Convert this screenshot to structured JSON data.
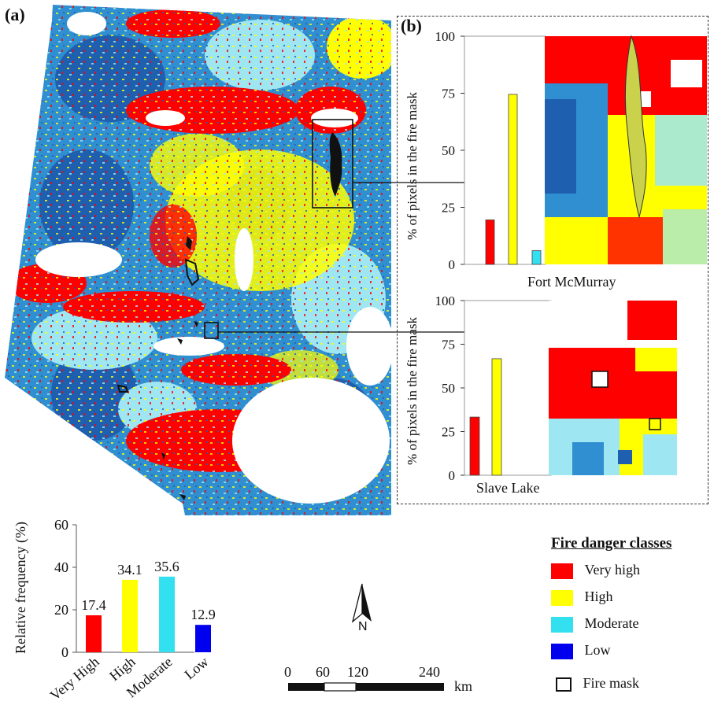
{
  "panel_a_label": "(a)",
  "panel_b_label": "(b)",
  "colors": {
    "very_high": "#ff0000",
    "high": "#ffff00",
    "moderate": "#33e0f0",
    "low": "#1f5fb0",
    "map_blue": "#2f8fd0",
    "map_lightblue": "#9ee6f2"
  },
  "inset_fort": {
    "title": "Fort McMurray",
    "ylabel": "% of pixels in the fire mask",
    "yticks": [
      "0",
      "25",
      "50",
      "75",
      "100"
    ]
  },
  "inset_slave": {
    "title": "Slave Lake",
    "ylabel": "% of pixels in the fire mask",
    "yticks": [
      "0",
      "25",
      "50",
      "75",
      "100"
    ]
  },
  "freq_chart": {
    "ylabel": "Relative frequency (%)",
    "yticks": [
      "0",
      "20",
      "40",
      "60"
    ],
    "categories": [
      "Very High",
      "High",
      "Moderate",
      "Low"
    ],
    "value_labels": [
      "17.4",
      "34.1",
      "35.6",
      "12.9"
    ]
  },
  "chart_data": [
    {
      "type": "bar",
      "title": "Fort McMurray",
      "ylabel": "% of pixels in the fire mask",
      "ylim": [
        0,
        100
      ],
      "categories": [
        "Very high",
        "High",
        "Moderate",
        "Low"
      ],
      "values": [
        19.5,
        74.5,
        6,
        0
      ]
    },
    {
      "type": "bar",
      "title": "Slave Lake",
      "ylabel": "% of pixels in the fire mask",
      "ylim": [
        0,
        100
      ],
      "categories": [
        "Very high",
        "High",
        "Moderate",
        "Low"
      ],
      "values": [
        33.3,
        66.7,
        0,
        0
      ]
    },
    {
      "type": "bar",
      "ylabel": "Relative frequency (%)",
      "ylim": [
        0,
        60
      ],
      "categories": [
        "Very High",
        "High",
        "Moderate",
        "Low"
      ],
      "values": [
        17.4,
        34.1,
        35.6,
        12.9
      ]
    }
  ],
  "legend": {
    "title": "Fire danger classes",
    "items": [
      {
        "label": "Very high",
        "color": "#ff0000"
      },
      {
        "label": "High",
        "color": "#ffff00"
      },
      {
        "label": "Moderate",
        "color": "#33e0f0"
      },
      {
        "label": "Low",
        "color": "#1f5fb0"
      },
      {
        "label": "Fire mask",
        "color": "#ffffff"
      }
    ]
  },
  "north_arrow": {
    "label": "N"
  },
  "scale_bar": {
    "ticks": [
      "0",
      "60",
      "120",
      "240"
    ],
    "unit": "km"
  }
}
